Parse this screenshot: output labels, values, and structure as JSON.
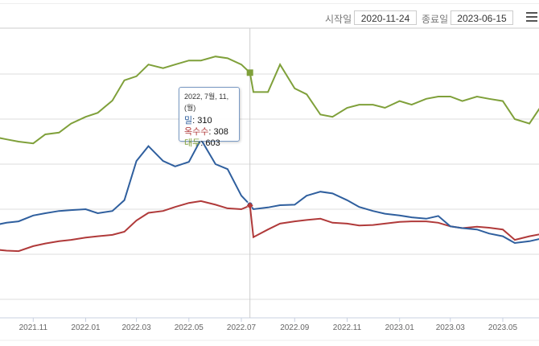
{
  "header": {
    "start_label": "시작일",
    "start_value": "2020-11-24",
    "end_label": "종료일",
    "end_value": "2023-06-15",
    "menu_icon": "hamburger-menu-icon"
  },
  "tooltip": {
    "date": "2022, 7월, 11, (월)",
    "rows": [
      {
        "name": "밀",
        "value": "310",
        "color": "#2f5f9e"
      },
      {
        "name": "옥수수",
        "value": "308",
        "color": "#b03a3a"
      },
      {
        "name": "대두",
        "value": "603",
        "color": "#7fa03a"
      }
    ]
  },
  "chart_data": {
    "type": "line",
    "title": "",
    "xlabel": "",
    "ylabel": "",
    "ylim": [
      60,
      700
    ],
    "grid": true,
    "x_ticks": [
      "2021.11",
      "2022.01",
      "2022.03",
      "2022.05",
      "2022.07",
      "2022.09",
      "2022.11",
      "2023.01",
      "2023.03",
      "2023.05"
    ],
    "x": [
      "2021-09-15",
      "2021-10-01",
      "2021-10-15",
      "2021-11-01",
      "2021-11-15",
      "2021-12-01",
      "2021-12-15",
      "2022-01-01",
      "2022-01-15",
      "2022-02-01",
      "2022-02-15",
      "2022-03-01",
      "2022-03-15",
      "2022-04-01",
      "2022-04-15",
      "2022-05-01",
      "2022-05-15",
      "2022-06-01",
      "2022-06-15",
      "2022-07-01",
      "2022-07-11",
      "2022-07-15",
      "2022-08-01",
      "2022-08-15",
      "2022-09-01",
      "2022-09-15",
      "2022-10-01",
      "2022-10-15",
      "2022-11-01",
      "2022-11-15",
      "2022-12-01",
      "2022-12-15",
      "2023-01-01",
      "2023-01-15",
      "2023-02-01",
      "2023-02-15",
      "2023-03-01",
      "2023-03-15",
      "2023-04-01",
      "2023-04-15",
      "2023-05-01",
      "2023-05-15",
      "2023-06-01",
      "2023-06-15"
    ],
    "series": [
      {
        "name": "밀",
        "color": "#2f5f9e",
        "values": [
          264,
          270,
          273,
          286,
          291,
          296,
          298,
          300,
          291,
          296,
          320,
          407,
          440,
          407,
          395,
          405,
          455,
          400,
          389,
          330,
          310,
          300,
          304,
          309,
          310,
          330,
          339,
          335,
          320,
          305,
          296,
          290,
          286,
          282,
          279,
          285,
          262,
          258,
          255,
          246,
          240,
          225,
          229,
          235
        ]
      },
      {
        "name": "옥수수",
        "color": "#b03a3a",
        "values": [
          211,
          208,
          207,
          218,
          224,
          229,
          232,
          237,
          240,
          243,
          250,
          275,
          292,
          296,
          305,
          314,
          318,
          310,
          302,
          300,
          308,
          238,
          255,
          268,
          273,
          276,
          279,
          270,
          268,
          264,
          265,
          268,
          272,
          273,
          273,
          270,
          262,
          258,
          261,
          259,
          255,
          232,
          240,
          245
        ]
      },
      {
        "name": "대두",
        "color": "#7fa03a",
        "values": [
          461,
          455,
          450,
          446,
          466,
          470,
          490,
          505,
          514,
          541,
          586,
          595,
          621,
          613,
          621,
          630,
          630,
          639,
          635,
          621,
          603,
          560,
          560,
          621,
          568,
          555,
          510,
          505,
          525,
          532,
          532,
          525,
          540,
          532,
          545,
          550,
          550,
          540,
          550,
          545,
          540,
          500,
          490,
          530
        ]
      }
    ],
    "highlight_date": "2022-07-11",
    "legend": "none"
  }
}
